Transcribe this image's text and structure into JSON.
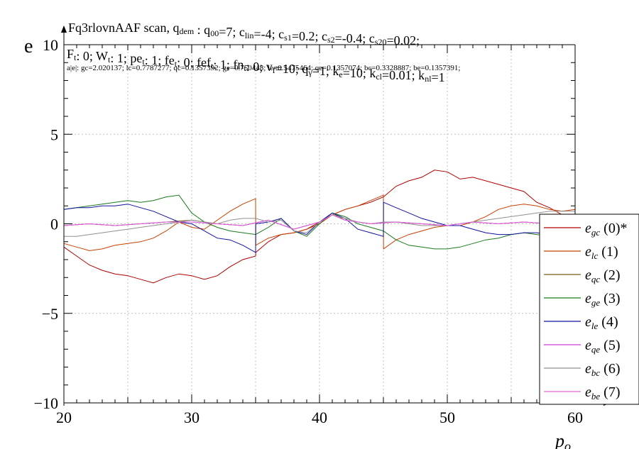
{
  "chart_data": {
    "type": "line",
    "title": "Fq3rlovnAAF scan, q_dem : q00=7; c_lin=-4; c_s1=0.2; c_s2=-0.4; c_s20=0.02;",
    "title_parts": {
      "name": "Fq3rlovnAAF scan, q",
      "dem_sub": "dem",
      "rest": [
        {
          "t": " : q"
        },
        {
          "s": "00"
        },
        {
          "t": "=7; c"
        },
        {
          "s": "lin"
        },
        {
          "t": "=-4; c"
        },
        {
          "s": "s1"
        },
        {
          "t": "=0.2; c"
        },
        {
          "s": "s2"
        },
        {
          "t": "=-0.4; c"
        },
        {
          "s": "s20"
        },
        {
          "t": "=0.02;"
        }
      ]
    },
    "param_line": [
      {
        "t": "F"
      },
      {
        "s": "t"
      },
      {
        "t": ": 0; W"
      },
      {
        "s": "t"
      },
      {
        "t": ": 1; pe"
      },
      {
        "s": "t"
      },
      {
        "t": ": 1; fe"
      },
      {
        "s": "t"
      },
      {
        "t": ": 0; fef"
      },
      {
        "s": "t"
      },
      {
        "t": ": 1; fn"
      },
      {
        "s": "t"
      },
      {
        "t": ": 0; v"
      },
      {
        "s": "f"
      },
      {
        "t": "=10; q"
      },
      {
        "s": "γ"
      },
      {
        "t": "=1; k"
      },
      {
        "s": "e"
      },
      {
        "t": "=10; k"
      },
      {
        "s": "cl"
      },
      {
        "t": "=0.01; k"
      },
      {
        "s": "nl"
      },
      {
        "t": "=1"
      }
    ],
    "norms_line": "a|e|: gc=2.020137; lc=0.7787277; qc=0.1357392; ge=0.750448; le=0.5475464; qe=0.1357074; bc=0.3328887; be=0.1357391;",
    "ylabel": "e",
    "xlabel_main": "p",
    "xlabel_sub": "o",
    "xlim": [
      20,
      60
    ],
    "ylim": [
      -10,
      10
    ],
    "x_ticks": [
      "20",
      "30",
      "40",
      "50",
      "60"
    ],
    "y_ticks": [
      "10",
      "5",
      "0",
      "−5",
      "−10"
    ],
    "grid": true,
    "legend_position": "right",
    "series": [
      {
        "name_main": "e",
        "name_sub": "gc",
        "suffix": " (0)*",
        "color": "#b00000",
        "x": [
          20,
          21,
          22,
          23,
          24,
          25,
          26,
          27,
          28,
          29,
          30,
          31,
          32,
          33,
          34,
          35,
          35.01,
          36,
          37,
          38,
          39,
          40,
          41,
          42,
          43,
          44,
          45,
          46,
          47,
          48,
          49,
          50,
          51,
          52,
          53,
          54,
          55,
          56,
          57,
          58,
          59,
          60
        ],
        "y": [
          -1.3,
          -1.8,
          -2.3,
          -2.6,
          -2.8,
          -2.9,
          -3.1,
          -3.3,
          -3.0,
          -2.8,
          -2.9,
          -3.1,
          -2.9,
          -2.4,
          -2.0,
          -1.8,
          -1.6,
          -1.0,
          -0.6,
          -0.5,
          -0.3,
          0.1,
          0.5,
          0.8,
          1.0,
          1.2,
          1.5,
          2.1,
          2.4,
          2.6,
          3.0,
          2.9,
          2.5,
          2.6,
          2.4,
          2.2,
          2.0,
          1.8,
          1.2,
          0.9,
          0.5,
          0.3
        ]
      },
      {
        "name_main": "e",
        "name_sub": "lc",
        "suffix": " (1)",
        "color": "#c84000",
        "x": [
          20,
          21,
          22,
          23,
          24,
          25,
          26,
          27,
          28,
          29,
          30,
          31,
          32,
          33,
          34,
          35,
          35.01,
          36,
          37,
          38,
          39,
          40,
          41,
          42,
          43,
          44,
          45,
          45.01,
          46,
          47,
          48,
          49,
          50,
          51,
          52,
          53,
          54,
          55,
          56,
          57,
          58,
          59,
          60
        ],
        "y": [
          -1.1,
          -1.3,
          -1.5,
          -1.4,
          -1.2,
          -1.1,
          -1.0,
          -0.8,
          -0.4,
          0.1,
          -0.2,
          -0.3,
          0.2,
          0.7,
          1.1,
          1.4,
          -1.2,
          -0.8,
          -0.6,
          -0.5,
          -0.3,
          0.0,
          0.5,
          0.8,
          1.0,
          1.3,
          1.6,
          -1.4,
          -0.9,
          -0.6,
          -0.4,
          -0.2,
          -0.1,
          -0.1,
          0.1,
          0.4,
          0.8,
          1.0,
          1.1,
          1.0,
          0.8,
          0.7,
          0.8
        ]
      },
      {
        "name_main": "e",
        "name_sub": "qc",
        "suffix": " (2)",
        "color": "#7a5a10",
        "x": [
          20,
          22,
          24,
          26,
          28,
          30,
          32,
          34,
          36,
          38,
          40,
          41,
          42,
          44,
          46,
          48,
          50,
          52,
          54,
          56,
          58,
          60
        ],
        "y": [
          -0.1,
          0.0,
          -0.1,
          0.0,
          0.1,
          0.2,
          0.0,
          -0.1,
          0.2,
          -0.3,
          0.1,
          0.6,
          0.2,
          0.0,
          0.1,
          0.0,
          -0.1,
          0.1,
          0.0,
          0.1,
          0.0,
          0.1
        ]
      },
      {
        "name_main": "e",
        "name_sub": "ge",
        "suffix": " (3)",
        "color": "#1a7a1a",
        "x": [
          20,
          21,
          22,
          23,
          24,
          25,
          26,
          27,
          28,
          29,
          30,
          31,
          32,
          33,
          34,
          35,
          36,
          37,
          38,
          39,
          40,
          41,
          42,
          43,
          44,
          45,
          46,
          47,
          48,
          49,
          50,
          51,
          52,
          53,
          54,
          55,
          56,
          57,
          58,
          59,
          60
        ],
        "y": [
          0.8,
          0.9,
          1.0,
          1.1,
          1.2,
          1.3,
          1.2,
          1.3,
          1.5,
          1.6,
          0.6,
          0.1,
          -0.2,
          -0.4,
          -0.5,
          -0.6,
          -0.2,
          0.3,
          -0.4,
          -0.7,
          0.0,
          0.6,
          0.4,
          0.0,
          -0.2,
          -0.4,
          -0.9,
          -1.2,
          -1.3,
          -1.4,
          -1.4,
          -1.3,
          -1.1,
          -0.9,
          -0.8,
          -0.6,
          -0.5,
          -0.6,
          -0.7,
          -0.5,
          -0.4
        ]
      },
      {
        "name_main": "e",
        "name_sub": "le",
        "suffix": " (4)",
        "color": "#1010a0",
        "x": [
          20,
          21,
          22,
          23,
          24,
          25,
          26,
          27,
          28,
          29,
          30,
          31,
          32,
          33,
          34,
          35,
          35.01,
          36,
          37,
          38,
          39,
          40,
          41,
          42,
          43,
          44,
          45,
          45.01,
          46,
          47,
          48,
          49,
          50,
          51,
          52,
          53,
          54,
          55,
          56,
          57,
          58,
          59,
          60
        ],
        "y": [
          0.8,
          0.9,
          0.9,
          1.0,
          1.0,
          1.1,
          0.9,
          0.7,
          0.4,
          0.1,
          0.0,
          -0.4,
          -0.8,
          -0.9,
          -1.2,
          -1.6,
          0.0,
          0.1,
          0.3,
          -0.4,
          -0.6,
          0.1,
          0.6,
          0.3,
          -0.3,
          -0.5,
          -0.7,
          1.2,
          0.9,
          0.6,
          0.3,
          0.1,
          -0.1,
          -0.1,
          -0.3,
          -0.5,
          -0.6,
          -0.6,
          -0.5,
          -0.5,
          -0.6,
          -0.4,
          -0.3
        ]
      },
      {
        "name_main": "e",
        "name_sub": "qe",
        "suffix": " (5)",
        "color": "#d040d0",
        "x": [
          20,
          22,
          24,
          26,
          28,
          30,
          32,
          34,
          36,
          38,
          40,
          41,
          42,
          44,
          46,
          48,
          50,
          52,
          54,
          56,
          58,
          60
        ],
        "y": [
          -0.1,
          0.0,
          -0.1,
          0.0,
          0.1,
          0.1,
          0.0,
          -0.1,
          0.2,
          -0.3,
          0.1,
          0.5,
          0.2,
          0.0,
          0.1,
          0.0,
          -0.1,
          0.1,
          0.0,
          0.1,
          0.0,
          0.1
        ]
      },
      {
        "name_main": "e",
        "name_sub": "bc",
        "suffix": " (6)",
        "color": "#909090",
        "x": [
          20,
          21,
          22,
          23,
          24,
          25,
          26,
          27,
          28,
          29,
          30,
          31,
          32,
          33,
          34,
          35,
          36,
          37,
          38,
          39,
          40,
          41,
          42,
          43,
          44,
          45,
          46,
          47,
          48,
          49,
          50,
          51,
          52,
          53,
          54,
          55,
          56,
          57,
          58,
          59,
          60
        ],
        "y": [
          -0.7,
          -0.7,
          -0.6,
          -0.5,
          -0.4,
          -0.3,
          -0.2,
          -0.1,
          0.0,
          0.1,
          0.2,
          0.1,
          0.0,
          0.2,
          0.3,
          0.3,
          0.1,
          0.2,
          -0.4,
          -0.5,
          0.1,
          0.5,
          0.3,
          0.1,
          0.0,
          0.1,
          0.1,
          0.0,
          -0.1,
          -0.1,
          -0.1,
          0.0,
          0.1,
          0.2,
          0.3,
          0.4,
          0.5,
          0.6,
          0.7,
          0.7,
          0.7
        ]
      },
      {
        "name_main": "e",
        "name_sub": "be",
        "suffix": " (7)",
        "color": "#e060e0",
        "x": [
          20,
          22,
          24,
          26,
          28,
          30,
          32,
          34,
          36,
          38,
          40,
          41,
          42,
          44,
          46,
          48,
          50,
          52,
          54,
          56,
          58,
          60
        ],
        "y": [
          -0.1,
          0.0,
          -0.1,
          0.0,
          0.1,
          0.1,
          0.0,
          -0.1,
          0.2,
          -0.3,
          0.1,
          0.5,
          0.2,
          0.0,
          0.1,
          0.0,
          -0.1,
          0.1,
          0.0,
          0.1,
          0.0,
          0.1
        ]
      }
    ]
  }
}
